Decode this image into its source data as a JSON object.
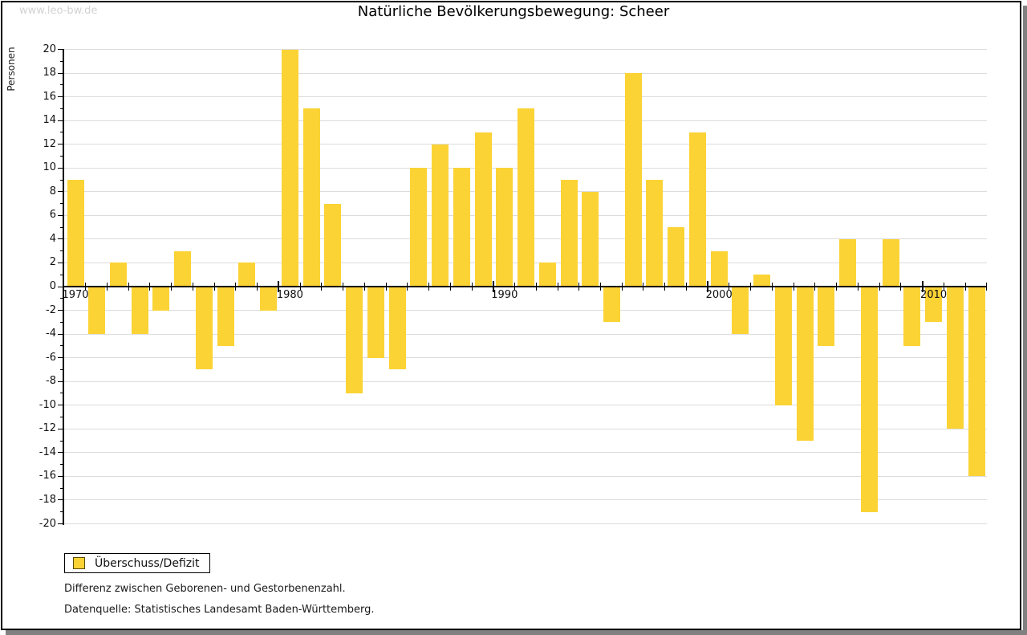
{
  "page": {
    "watermark": "www.leo-bw.de",
    "title": "Natürliche Bevölkerungsbewegung: Scheer"
  },
  "chart_data": {
    "type": "bar",
    "title": "Natürliche Bevölkerungsbewegung: Scheer",
    "xlabel": "",
    "ylabel": "Personen",
    "series_name": "Überschuss/Defizit",
    "categories": [
      "1970",
      "1971",
      "1972",
      "1973",
      "1974",
      "1975",
      "1976",
      "1977",
      "1978",
      "1979",
      "1980",
      "1981",
      "1982",
      "1983",
      "1984",
      "1985",
      "1986",
      "1987",
      "1988",
      "1989",
      "1990",
      "1991",
      "1992",
      "1993",
      "1994",
      "1995",
      "1996",
      "1997",
      "1998",
      "1999",
      "2000",
      "2001",
      "2002",
      "2003",
      "2004",
      "2005",
      "2006",
      "2007",
      "2008",
      "2009",
      "2010",
      "2011",
      "2012"
    ],
    "values": [
      9,
      -4,
      2,
      -4,
      -2,
      3,
      -7,
      -5,
      2,
      -2,
      20,
      15,
      7,
      -9,
      -6,
      -7,
      10,
      12,
      10,
      13,
      10,
      15,
      2,
      9,
      8,
      -3,
      18,
      9,
      5,
      13,
      3,
      -4,
      1,
      -10,
      -13,
      -5,
      4,
      -19,
      4,
      -5,
      -3,
      -12,
      -16
    ],
    "ylim": [
      -20,
      20
    ],
    "y_tick_interval": 2,
    "y_minor_tick_interval": 1,
    "x_labeled_ticks": [
      "1970",
      "1980",
      "1990",
      "2000",
      "2010"
    ],
    "grid": "horizontal",
    "legend_position": "bottom-left"
  },
  "legend": {
    "label": "Überschuss/Defizit"
  },
  "footnotes": {
    "line1": "Differenz zwischen Geborenen- und Gestorbenenzahl.",
    "line2": "Datenquelle: Statistisches Landesamt Baden-Württemberg."
  },
  "colors": {
    "bar": "#FBD335",
    "bar_border": "#5f4b00",
    "grid": "#DCDCDC",
    "axis": "#000000",
    "watermark": "#D2D2D2",
    "shadow": "#808080"
  }
}
